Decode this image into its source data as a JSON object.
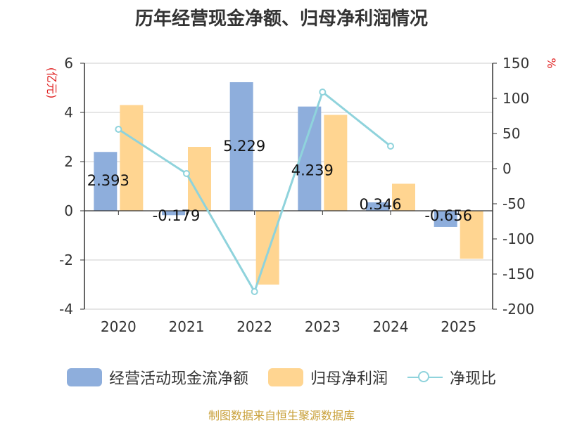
{
  "chart_data": {
    "type": "bar",
    "title": "历年经营现金净额、归母净利润情况",
    "categories": [
      "2020",
      "2021",
      "2022",
      "2023",
      "2024",
      "2025"
    ],
    "y_left": {
      "label": "(亿元)",
      "min": -4,
      "max": 6,
      "ticks": [
        "6",
        "4",
        "2",
        "0",
        "-2",
        "-4"
      ]
    },
    "y_right": {
      "label": "%",
      "min": -200,
      "max": 150,
      "ticks": [
        "150",
        "100",
        "50",
        "0",
        "-50",
        "-100",
        "-150",
        "-200"
      ]
    },
    "series": [
      {
        "name": "经营活动现金流净额",
        "axis": "left",
        "type": "bar",
        "color": "#8eaedc",
        "values": [
          2.393,
          -0.179,
          5.229,
          4.239,
          0.346,
          -0.656
        ],
        "labels": [
          "2.393",
          "-0.179",
          "5.229",
          "4.239",
          "0.346",
          "-0.656"
        ]
      },
      {
        "name": "归母净利润",
        "axis": "left",
        "type": "bar",
        "color": "#ffd591",
        "values": [
          4.3,
          2.6,
          -3.0,
          3.9,
          1.1,
          -1.95
        ]
      },
      {
        "name": "净现比",
        "axis": "right",
        "type": "line",
        "color": "#8fd3dc",
        "values": [
          56,
          -7,
          -175,
          109,
          32,
          null
        ]
      }
    ],
    "legend_position": "bottom",
    "grid": true
  },
  "source": "制图数据来自恒生聚源数据库"
}
